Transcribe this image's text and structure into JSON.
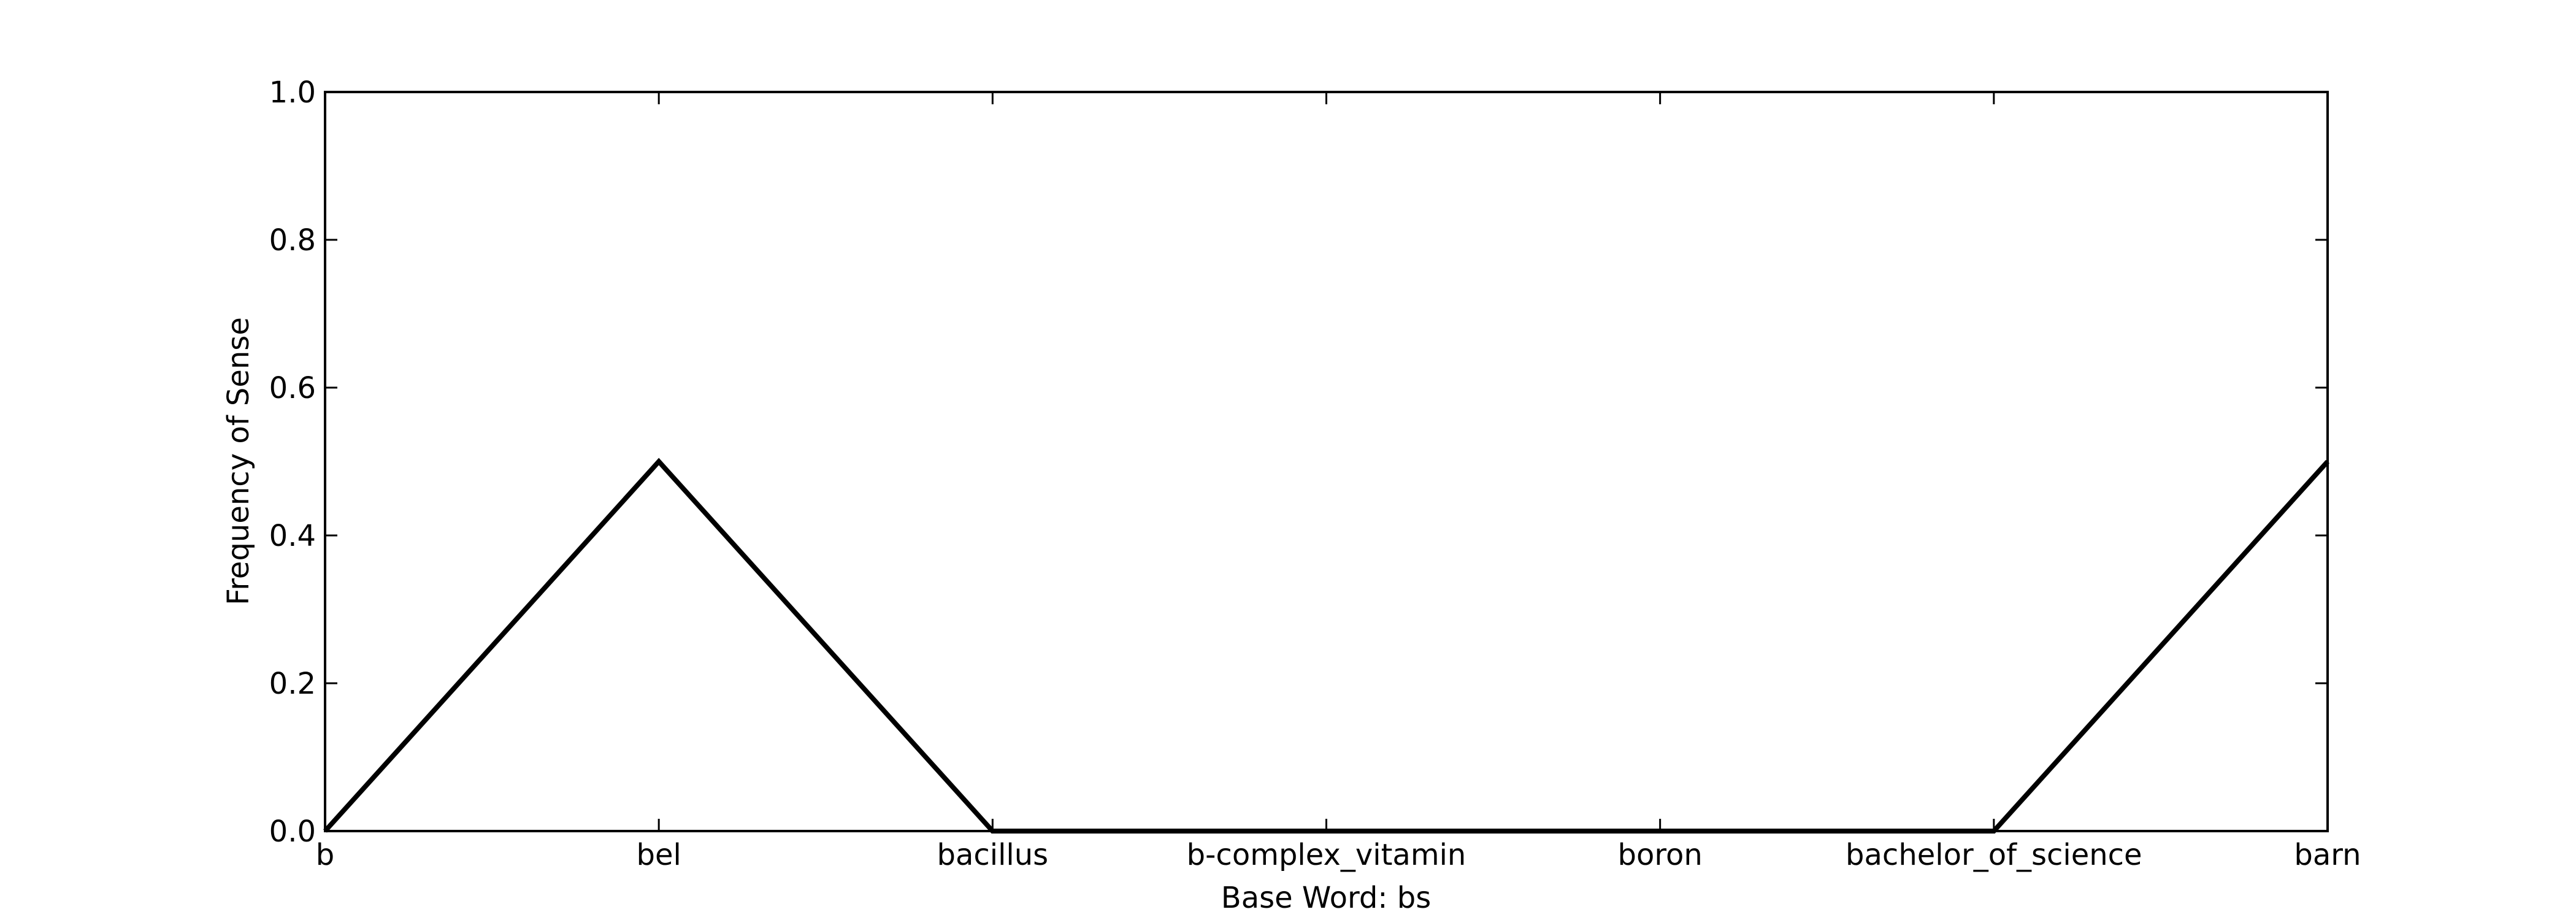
{
  "chart_data": {
    "type": "line",
    "categories": [
      "b",
      "bel",
      "bacillus",
      "b-complex_vitamin",
      "boron",
      "bachelor_of_science",
      "barn"
    ],
    "series": [
      {
        "values": [
          0.0,
          0.5,
          0.0,
          0.0,
          0.0,
          0.0,
          0.5
        ]
      }
    ],
    "xlabel": "Base Word: bs",
    "ylabel": "Frequency of Sense",
    "ylim": [
      0.0,
      1.0
    ],
    "yticks": [
      "0.0",
      "0.2",
      "0.4",
      "0.6",
      "0.8",
      "1.0"
    ],
    "grid": false,
    "line_color": "#000000"
  }
}
